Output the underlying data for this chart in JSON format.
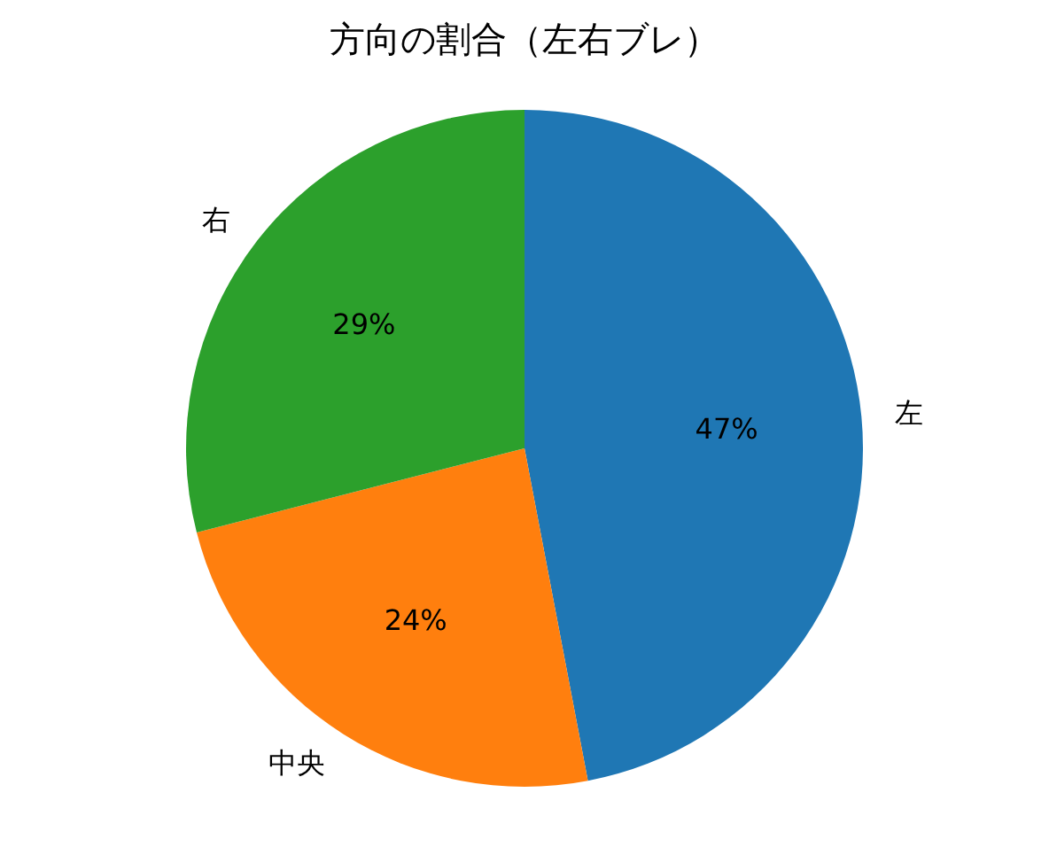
{
  "chart_data": {
    "type": "pie",
    "title": "方向の割合（左右ブレ）",
    "categories": [
      "左",
      "中央",
      "右"
    ],
    "values": [
      47,
      24,
      29
    ],
    "value_labels": [
      "47%",
      "24%",
      "29%"
    ],
    "colors": [
      "#1f77b4",
      "#ff7f0e",
      "#2ca02c"
    ]
  }
}
